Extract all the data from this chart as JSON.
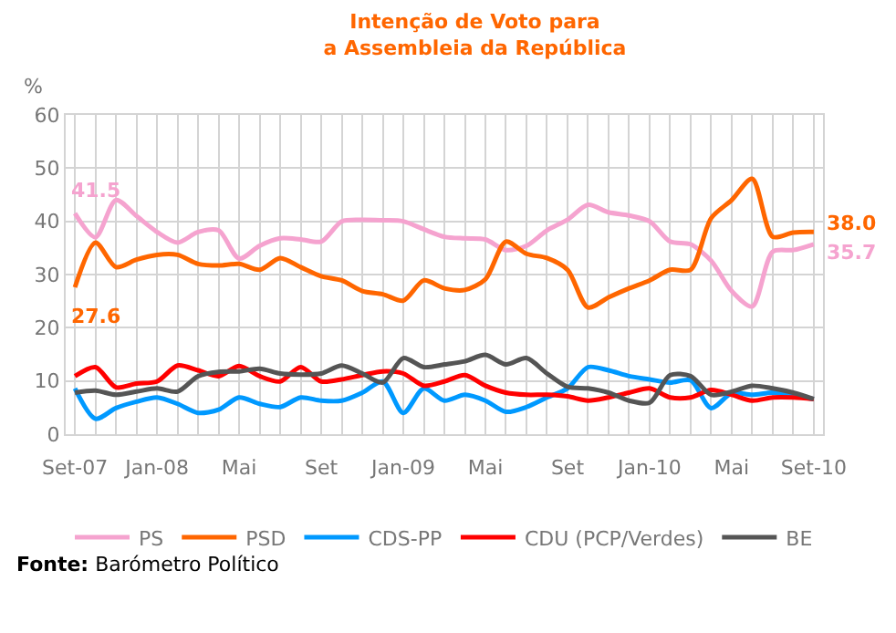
{
  "chart_data": {
    "type": "line",
    "title": "Intenção de Voto para\na Assembleia da República",
    "ylabel": "%",
    "categories": [
      "Set-07",
      null,
      null,
      null,
      "Jan-08",
      null,
      null,
      null,
      "Mai",
      null,
      null,
      null,
      "Set",
      null,
      null,
      null,
      "Jan-09",
      null,
      null,
      null,
      "Mai",
      null,
      null,
      null,
      "Set",
      null,
      null,
      null,
      "Jan-10",
      null,
      null,
      null,
      "Mai",
      null,
      null,
      null,
      "Set-10"
    ],
    "series": [
      {
        "name": "PS",
        "color": "#f5a3cf",
        "values": [
          41.5,
          37,
          44,
          41,
          38,
          36,
          38,
          38.3,
          33,
          35.4,
          36.8,
          36.6,
          36.2,
          40,
          40.3,
          40.2,
          40,
          38.5,
          37.1,
          36.8,
          36.6,
          34.6,
          35.4,
          38.3,
          40.3,
          43.1,
          41.7,
          41.1,
          40,
          36.2,
          35.7,
          32.6,
          26.9,
          24,
          34.3,
          34.6,
          35.7
        ]
      },
      {
        "name": "PSD",
        "color": "#ff6600",
        "values": [
          27.6,
          36,
          31.4,
          32.8,
          33.7,
          33.7,
          32,
          31.7,
          32,
          30.9,
          33.1,
          31.4,
          29.7,
          28.9,
          26.9,
          26.3,
          25.1,
          28.9,
          27.4,
          27.1,
          29.1,
          36.2,
          33.9,
          33.1,
          30.9,
          23.8,
          25.7,
          27.4,
          28.9,
          30.9,
          30.9,
          40.6,
          44,
          48,
          37.1,
          37.9,
          38.0
        ]
      },
      {
        "name": "CDS-PP",
        "color": "#0099ff",
        "values": [
          8.6,
          2.9,
          4.9,
          6.1,
          6.9,
          5.7,
          4,
          4.6,
          6.9,
          5.7,
          5.1,
          6.9,
          6.3,
          6.3,
          7.8,
          9.9,
          4,
          8.6,
          6.3,
          7.4,
          6.3,
          4.2,
          5.1,
          6.9,
          8.6,
          12.6,
          12,
          10.9,
          10.3,
          9.7,
          10.1,
          4.9,
          7.7,
          7.4,
          7.8,
          7.2,
          6.6
        ]
      },
      {
        "name": "CDU (PCP/Verdes)",
        "color": "#ff0000",
        "values": [
          10.9,
          12.6,
          8.8,
          9.5,
          9.9,
          12.9,
          12,
          10.9,
          12.8,
          10.9,
          9.9,
          12.6,
          9.9,
          10.3,
          11.1,
          11.8,
          11.4,
          9.1,
          9.9,
          11.1,
          9.1,
          7.8,
          7.4,
          7.4,
          7.1,
          6.3,
          6.9,
          7.8,
          8.6,
          6.9,
          6.9,
          8.3,
          7.4,
          6.3,
          6.9,
          6.9,
          6.6
        ]
      },
      {
        "name": "BE",
        "color": "#555555",
        "values": [
          7.8,
          8.2,
          7.4,
          8,
          8.6,
          8,
          10.9,
          11.7,
          11.8,
          12.3,
          11.4,
          11.2,
          11.4,
          12.9,
          11.4,
          9.7,
          14.3,
          12.6,
          13.1,
          13.7,
          14.9,
          13.1,
          14.3,
          11.4,
          8.9,
          8.6,
          7.8,
          6.3,
          5.9,
          11.1,
          10.9,
          7.4,
          8,
          9.1,
          8.6,
          7.8,
          6.6
        ]
      }
    ],
    "annotations": [
      {
        "text": "41.5",
        "x": "Set-07",
        "y": 41.5
      },
      {
        "text": "27.6",
        "x": "Set-07",
        "y": 27.6
      },
      {
        "text": "38.0",
        "x": "Set-10",
        "y": 38.0
      },
      {
        "text": "35.7",
        "x": "Set-10",
        "y": 35.7
      },
      "Fonte: Barómetro Político"
    ],
    "ylim": [
      0,
      60
    ],
    "yticks": [
      0,
      10,
      20,
      30,
      40,
      50,
      60
    ],
    "grid": true,
    "legend": "bottom",
    "marker": "none",
    "line_style": "solid"
  }
}
